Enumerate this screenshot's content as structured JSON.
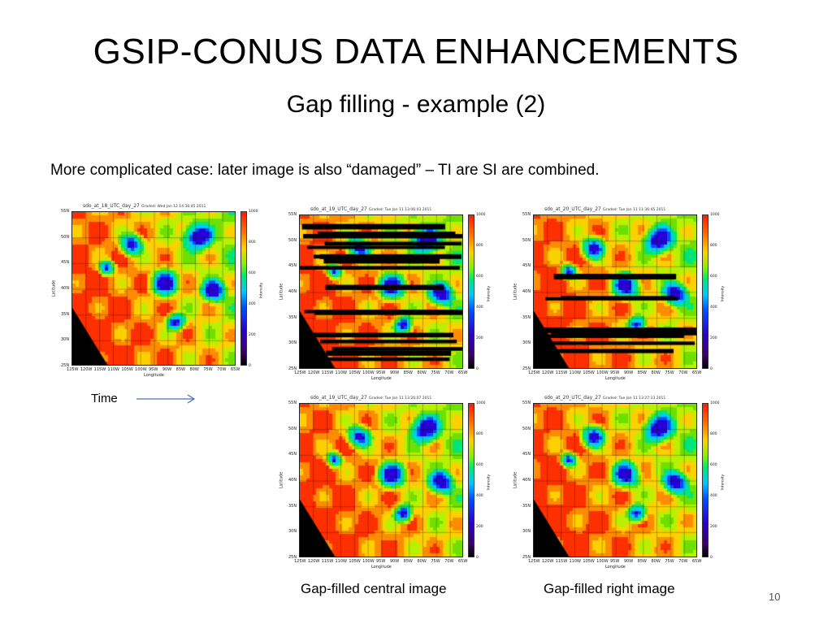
{
  "slide": {
    "title": "GSIP-CONUS DATA ENHANCEMENTS",
    "subtitle": "Gap filling - example (2)",
    "body": "More complicated case: later image is also “damaged” – TI are SI are combined.",
    "time_label": "Time",
    "caption_center": "Gap-filled central image",
    "caption_right": "Gap-filled right image",
    "slide_number": "10"
  },
  "panels": [
    {
      "title": "sdo_at_18_UTC_day_27",
      "date": "Graded: Wed Jan 12 14:36:45 2011",
      "damaged": false
    },
    {
      "title": "sdo_at_19_UTC_day_27",
      "date": "Graded: Tue Jan 11 13:06:03 2011",
      "damaged": true
    },
    {
      "title": "sdo_at_20_UTC_day_27",
      "date": "Graded: Tue Jan 11 11:36:45 2011",
      "damaged": true
    },
    {
      "title": "sdo_at_19_UTC_day_27",
      "date": "Graded: Tue Jan 11 13:26:07 2011",
      "damaged": false
    },
    {
      "title": "sdo_at_20_UTC_day_27",
      "date": "Graded: Tue Jan 11 13:27:13 2011",
      "damaged": false
    }
  ],
  "map_axes": {
    "lat_labels": [
      "55N",
      "50N",
      "45N",
      "40N",
      "35N",
      "30N",
      "25N"
    ],
    "lon_labels": [
      "125W",
      "120W",
      "115W",
      "110W",
      "105W",
      "100W",
      "95W",
      "90W",
      "85W",
      "80W",
      "75W",
      "70W",
      "65W"
    ],
    "y_title": "Latitude",
    "x_title": "Longitude",
    "colorbar_title": "Intensity",
    "colorbar_labels": [
      "1000",
      "800",
      "600",
      "400",
      "200",
      "0"
    ]
  }
}
